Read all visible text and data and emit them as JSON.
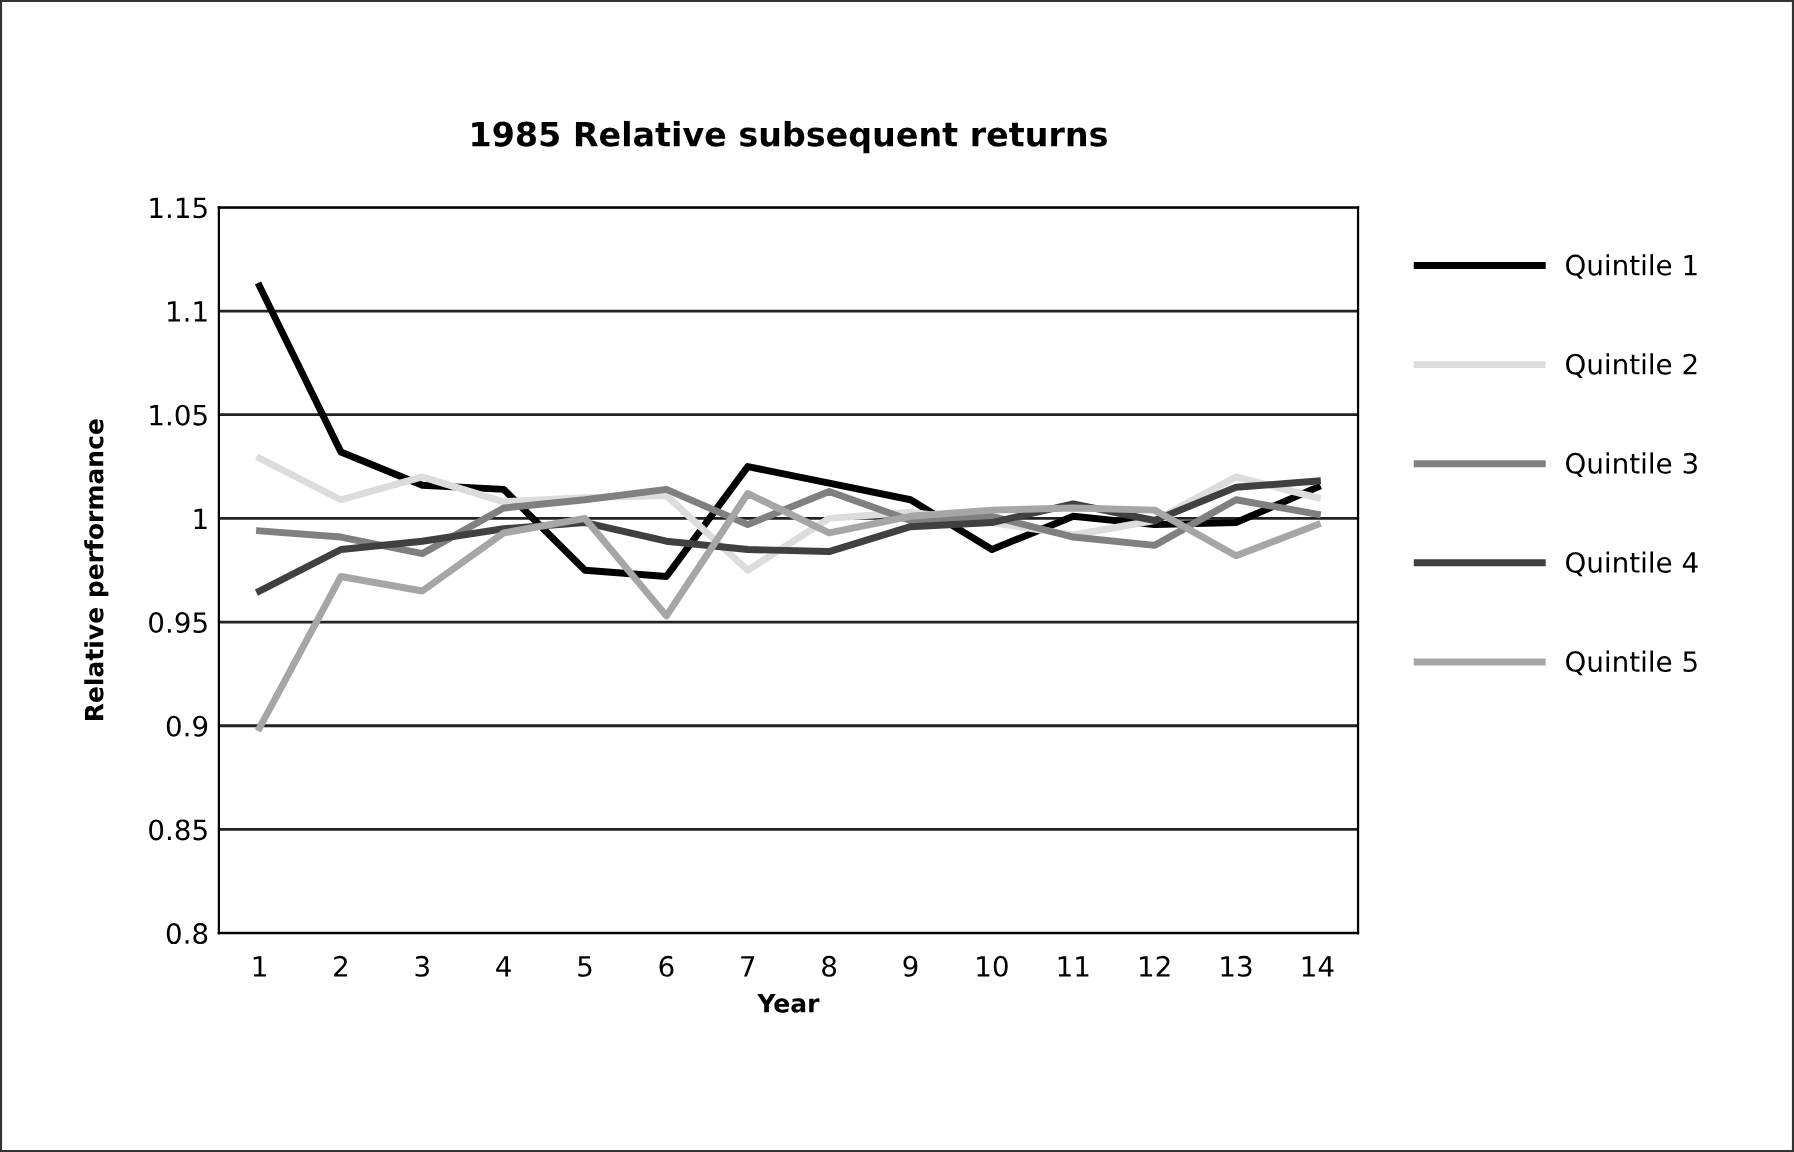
{
  "chart_data": {
    "type": "line",
    "title": "1985 Relative subsequent returns",
    "xlabel": "Year",
    "ylabel": "Relative performance",
    "categories": [
      "1",
      "2",
      "3",
      "4",
      "5",
      "6",
      "7",
      "8",
      "9",
      "10",
      "11",
      "12",
      "13",
      "14"
    ],
    "series": [
      {
        "name": "Quintile 1",
        "color": "#000000",
        "values": [
          1.112,
          1.032,
          1.016,
          1.014,
          0.975,
          0.972,
          1.025,
          1.017,
          1.009,
          0.985,
          1.001,
          0.997,
          0.998,
          1.015
        ]
      },
      {
        "name": "Quintile 2",
        "color": "#dcdcdc",
        "values": [
          1.029,
          1.009,
          1.02,
          1.008,
          1.01,
          1.011,
          0.975,
          1.0,
          1.003,
          0.998,
          0.992,
          0.999,
          1.02,
          1.01
        ]
      },
      {
        "name": "Quintile 3",
        "color": "#808080",
        "values": [
          0.994,
          0.991,
          0.983,
          1.005,
          1.009,
          1.014,
          0.997,
          1.013,
          0.999,
          1.001,
          0.991,
          0.987,
          1.009,
          1.002
        ]
      },
      {
        "name": "Quintile 4",
        "color": "#404040",
        "values": [
          0.965,
          0.985,
          0.989,
          0.995,
          0.998,
          0.989,
          0.985,
          0.984,
          0.996,
          0.998,
          1.007,
          0.999,
          1.015,
          1.018
        ]
      },
      {
        "name": "Quintile 5",
        "color": "#a6a6a6",
        "values": [
          0.899,
          0.972,
          0.965,
          0.993,
          1.0,
          0.953,
          1.012,
          0.993,
          1.001,
          1.004,
          1.005,
          1.004,
          0.982,
          0.997
        ]
      }
    ],
    "ylim": [
      0.8,
      1.15
    ],
    "yticks": [
      0.8,
      0.85,
      0.9,
      0.95,
      1,
      1.05,
      1.1,
      1.15
    ],
    "grid": "y",
    "legend": "right",
    "marker": "none",
    "line_style": "solid"
  }
}
